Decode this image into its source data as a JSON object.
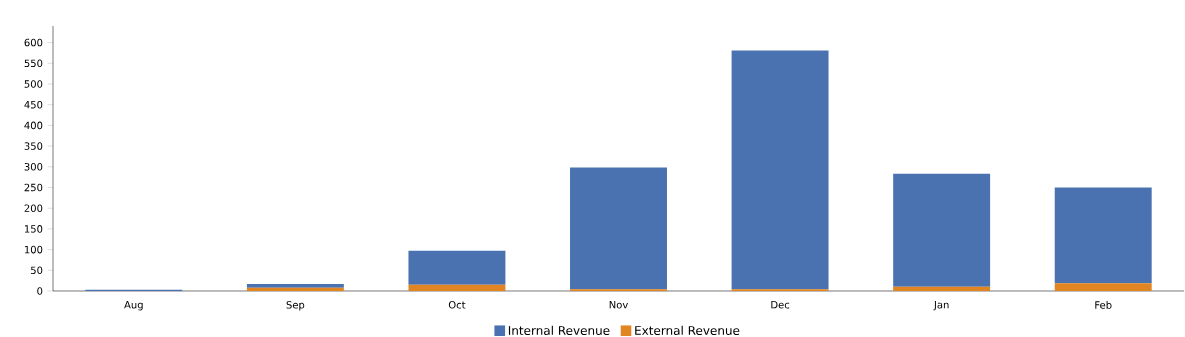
{
  "chart_data": {
    "type": "bar",
    "stacked": true,
    "categories": [
      "Aug",
      "Sep",
      "Oct",
      "Nov",
      "Dec",
      "Jan",
      "Feb"
    ],
    "series": [
      {
        "name": "External Revenue",
        "color": "#e08521",
        "values": [
          0,
          8,
          15,
          4,
          4,
          10,
          19
        ]
      },
      {
        "name": "Internal Revenue",
        "color": "#4a72b0",
        "values": [
          3,
          9,
          82,
          294,
          577,
          273,
          231
        ]
      }
    ],
    "ylim": [
      0,
      640
    ],
    "yticks": [
      0,
      50,
      100,
      150,
      200,
      250,
      300,
      350,
      400,
      450,
      500,
      550,
      600
    ],
    "grid": false,
    "legend": "bottom"
  }
}
